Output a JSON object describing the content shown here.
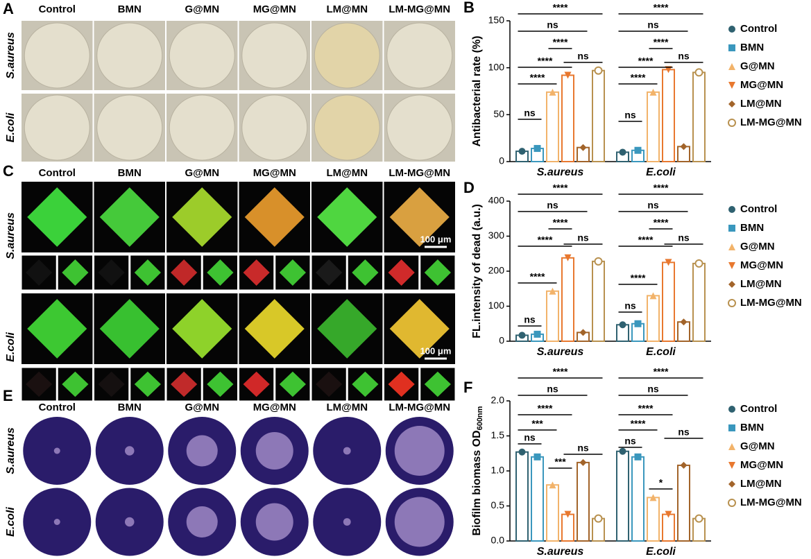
{
  "panels": [
    {
      "letter": "A",
      "columns": [
        "Control",
        "BMN",
        "G@MN",
        "MG@MN",
        "LM@MN",
        "LM-MG@MN"
      ],
      "rows": [
        "S.aureus",
        "E.coli"
      ]
    },
    {
      "letter": "C",
      "columns": [
        "Control",
        "BMN",
        "G@MN",
        "MG@MN",
        "LM@MN",
        "LM-MG@MN"
      ],
      "rows": [
        "S.aureus",
        "E.coli"
      ],
      "scale_bar": "100 μm"
    },
    {
      "letter": "E",
      "columns": [
        "Control",
        "BMN",
        "G@MN",
        "MG@MN",
        "LM@MN",
        "LM-MG@MN"
      ],
      "rows": [
        "S.aureus",
        "E.coli"
      ]
    }
  ],
  "chart_data": [
    {
      "type": "bar",
      "letter": "B",
      "ylabel": "Antibacterial rate (%)",
      "categories": [
        "S.aureus",
        "E.coli"
      ],
      "series": [
        {
          "name": "Control",
          "color": "#2f6170",
          "marker": "circle",
          "values": [
            11,
            10
          ]
        },
        {
          "name": "BMN",
          "color": "#3a97bd",
          "marker": "square",
          "values": [
            14,
            12
          ]
        },
        {
          "name": "G@MN",
          "color": "#f2b36a",
          "marker": "triangle-up",
          "values": [
            74,
            74
          ]
        },
        {
          "name": "MG@MN",
          "color": "#e8782f",
          "marker": "triangle-down",
          "values": [
            92,
            98
          ]
        },
        {
          "name": "LM@MN",
          "color": "#a2642a",
          "marker": "diamond",
          "values": [
            15,
            16
          ]
        },
        {
          "name": "LM-MG@MN",
          "color": "#b8914f",
          "marker": "open-circle",
          "values": [
            97,
            95
          ]
        }
      ],
      "ylim": [
        0,
        150
      ],
      "yticks": [
        0,
        50,
        100,
        150
      ],
      "significance": [
        [
          "****",
          "ns",
          "****",
          "****",
          "ns",
          "****",
          "ns"
        ],
        [
          "****",
          "ns",
          "****",
          "****",
          "ns",
          "****",
          "ns"
        ]
      ]
    },
    {
      "type": "bar",
      "letter": "D",
      "ylabel": "FL.intensity of dead (a.u.)",
      "categories": [
        "S.aureus",
        "E.coli"
      ],
      "series": [
        {
          "name": "Control",
          "color": "#2f6170",
          "marker": "circle",
          "values": [
            17,
            47
          ]
        },
        {
          "name": "BMN",
          "color": "#3a97bd",
          "marker": "square",
          "values": [
            20,
            50
          ]
        },
        {
          "name": "G@MN",
          "color": "#f2b36a",
          "marker": "triangle-up",
          "values": [
            143,
            130
          ]
        },
        {
          "name": "MG@MN",
          "color": "#e8782f",
          "marker": "triangle-down",
          "values": [
            238,
            225
          ]
        },
        {
          "name": "LM@MN",
          "color": "#a2642a",
          "marker": "diamond",
          "values": [
            25,
            55
          ]
        },
        {
          "name": "LM-MG@MN",
          "color": "#b8914f",
          "marker": "open-circle",
          "values": [
            228,
            222
          ]
        }
      ],
      "ylim": [
        0,
        400
      ],
      "yticks": [
        0,
        100,
        200,
        300,
        400
      ],
      "significance": [
        [
          "****",
          "ns",
          "****",
          "****",
          "ns",
          "****",
          "ns"
        ],
        [
          "****",
          "ns",
          "****",
          "****",
          "ns",
          "****",
          "ns"
        ]
      ]
    },
    {
      "type": "bar",
      "letter": "F",
      "ylabel": "Biofilm biomass OD",
      "ylabel_sub": "600nm",
      "categories": [
        "S.aureus",
        "E.coli"
      ],
      "series": [
        {
          "name": "Control",
          "color": "#2f6170",
          "marker": "circle",
          "values": [
            1.27,
            1.28
          ]
        },
        {
          "name": "BMN",
          "color": "#3a97bd",
          "marker": "square",
          "values": [
            1.2,
            1.2
          ]
        },
        {
          "name": "G@MN",
          "color": "#f2b36a",
          "marker": "triangle-up",
          "values": [
            0.8,
            0.62
          ]
        },
        {
          "name": "MG@MN",
          "color": "#e8782f",
          "marker": "triangle-down",
          "values": [
            0.38,
            0.38
          ]
        },
        {
          "name": "LM@MN",
          "color": "#a2642a",
          "marker": "diamond",
          "values": [
            1.12,
            1.08
          ]
        },
        {
          "name": "LM-MG@MN",
          "color": "#b8914f",
          "marker": "open-circle",
          "values": [
            0.32,
            0.32
          ]
        }
      ],
      "ylim": [
        0,
        2
      ],
      "yticks": [
        {
          "value": 0,
          "label": "0.0"
        },
        0.5,
        {
          "value": 1,
          "label": "1.0"
        },
        1.5,
        {
          "value": 2,
          "label": "2.0"
        }
      ],
      "significance": [
        [
          "****",
          "ns",
          "****",
          "***",
          "ns",
          "***",
          "ns"
        ],
        [
          "****",
          "ns",
          "****",
          "****",
          "ns",
          "*",
          "ns"
        ]
      ]
    }
  ]
}
